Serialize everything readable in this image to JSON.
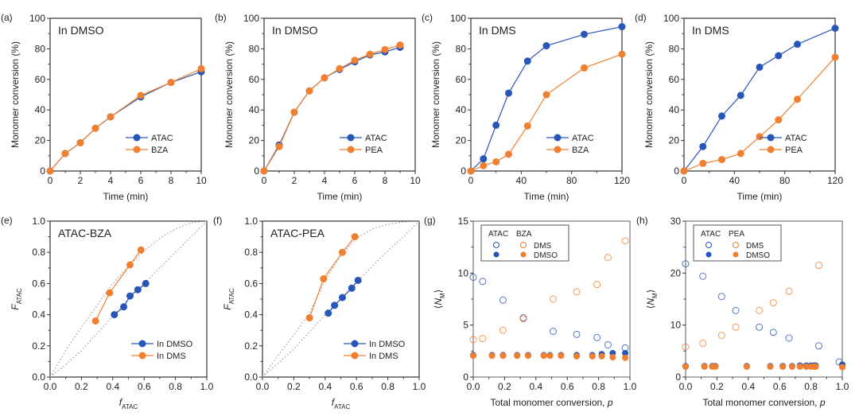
{
  "colors": {
    "blue": "#2855b8",
    "orange": "#f08030",
    "axis": "#333333",
    "dotted": "#888888"
  },
  "chart_data": [
    {
      "panel": "(a)",
      "type": "line",
      "annotation": "In DMSO",
      "xlabel": "Time (min)",
      "ylabel": "Monomer conversion (%)",
      "xlim": [
        0,
        10
      ],
      "ylim": [
        0,
        100
      ],
      "xticks": [
        0,
        2,
        4,
        6,
        8,
        10
      ],
      "yticks": [
        0,
        20,
        40,
        60,
        80,
        100
      ],
      "legend": "bottom-right",
      "series": [
        {
          "name": "ATAC",
          "color": "blue",
          "x": [
            0,
            1,
            2,
            3,
            4,
            6,
            8,
            10
          ],
          "y": [
            0,
            11.5,
            18.5,
            28,
            35.5,
            48.5,
            58,
            65
          ]
        },
        {
          "name": "BZA",
          "color": "orange",
          "x": [
            0,
            1,
            2,
            3,
            4,
            6,
            8,
            10
          ],
          "y": [
            0,
            11.5,
            18.5,
            28,
            35.5,
            49.5,
            58,
            67
          ]
        }
      ]
    },
    {
      "panel": "(b)",
      "type": "line",
      "annotation": "In DMSO",
      "xlabel": "Time (min)",
      "ylabel": "Monomer conversion (%)",
      "xlim": [
        0,
        10
      ],
      "ylim": [
        0,
        100
      ],
      "xticks": [
        0,
        2,
        4,
        6,
        8,
        10
      ],
      "yticks": [
        0,
        20,
        40,
        60,
        80,
        100
      ],
      "legend": "bottom-right",
      "series": [
        {
          "name": "ATAC",
          "color": "blue",
          "x": [
            0,
            1,
            2,
            3,
            4,
            5,
            6,
            7,
            8,
            9
          ],
          "y": [
            0,
            17,
            38.5,
            52.5,
            61,
            66.5,
            71.5,
            76,
            78,
            81
          ]
        },
        {
          "name": "PEA",
          "color": "orange",
          "x": [
            0,
            1,
            2,
            3,
            4,
            5,
            6,
            7,
            8,
            9
          ],
          "y": [
            0,
            16,
            38.5,
            52.5,
            61,
            67,
            72.5,
            76.5,
            79.5,
            82.5
          ]
        }
      ]
    },
    {
      "panel": "(c)",
      "type": "line",
      "annotation": "In DMS",
      "xlabel": "Time (min)",
      "ylabel": "Monomer conversion (%)",
      "xlim": [
        0,
        120
      ],
      "ylim": [
        0,
        100
      ],
      "xticks": [
        0,
        40,
        80,
        120
      ],
      "yticks": [
        0,
        20,
        40,
        60,
        80,
        100
      ],
      "legend": "bottom-right",
      "series": [
        {
          "name": "ATAC",
          "color": "blue",
          "x": [
            0,
            10,
            20,
            30,
            45,
            60,
            90,
            120
          ],
          "y": [
            0,
            8,
            30,
            51,
            72,
            82,
            89.5,
            94.5
          ]
        },
        {
          "name": "BZA",
          "color": "orange",
          "x": [
            0,
            10,
            20,
            30,
            45,
            60,
            90,
            120
          ],
          "y": [
            0,
            3.5,
            6,
            11,
            29.5,
            50,
            67.5,
            76.5
          ]
        }
      ]
    },
    {
      "panel": "(d)",
      "type": "line",
      "annotation": "In DMS",
      "xlabel": "Time (min)",
      "ylabel": "Monomer conversion (%)",
      "xlim": [
        0,
        120
      ],
      "ylim": [
        0,
        100
      ],
      "xticks": [
        0,
        40,
        80,
        120
      ],
      "yticks": [
        0,
        20,
        40,
        60,
        80,
        100
      ],
      "legend": "bottom-right",
      "series": [
        {
          "name": "ATAC",
          "color": "blue",
          "x": [
            0,
            15,
            30,
            45,
            60,
            75,
            90,
            120
          ],
          "y": [
            0,
            16,
            36,
            49.5,
            68,
            75.5,
            83,
            93.5
          ]
        },
        {
          "name": "PEA",
          "color": "orange",
          "x": [
            0,
            15,
            30,
            45,
            60,
            75,
            90,
            120
          ],
          "y": [
            0,
            5,
            7.5,
            11.5,
            22.5,
            33.5,
            47,
            74.5
          ]
        }
      ]
    },
    {
      "panel": "(e)",
      "type": "line",
      "annotation": "ATAC-BZA",
      "xlabel": "f",
      "xlabel_sub": "ATAC",
      "ylabel": "F",
      "ylabel_sub": "ATAC",
      "xlim": [
        0,
        1
      ],
      "ylim": [
        0,
        1
      ],
      "xticks": [
        0.0,
        0.2,
        0.4,
        0.6,
        0.8,
        1.0
      ],
      "yticks": [
        0.0,
        0.2,
        0.4,
        0.6,
        0.8,
        1.0
      ],
      "legend": "bottom-right",
      "dotted_curves": [
        {
          "x": [
            0,
            0.1,
            0.2,
            0.3,
            0.4,
            0.5,
            0.6,
            0.7,
            0.8,
            0.9,
            1.0
          ],
          "y": [
            0,
            0.17,
            0.32,
            0.46,
            0.6,
            0.71,
            0.81,
            0.89,
            0.95,
            0.99,
            1.0
          ]
        },
        {
          "x": [
            0,
            0.1,
            0.2,
            0.3,
            0.4,
            0.5,
            0.6,
            0.7,
            0.8,
            0.9,
            1.0
          ],
          "y": [
            0,
            0.08,
            0.17,
            0.28,
            0.39,
            0.5,
            0.6,
            0.7,
            0.8,
            0.9,
            1.0
          ]
        }
      ],
      "series": [
        {
          "name": "In DMSO",
          "color": "blue",
          "x": [
            0.41,
            0.47,
            0.51,
            0.56,
            0.61
          ],
          "y": [
            0.4,
            0.45,
            0.52,
            0.56,
            0.6
          ]
        },
        {
          "name": "In DMS",
          "color": "orange",
          "x": [
            0.29,
            0.38,
            0.51,
            0.58
          ],
          "y": [
            0.36,
            0.54,
            0.72,
            0.815
          ]
        }
      ]
    },
    {
      "panel": "(f)",
      "type": "line",
      "annotation": "ATAC-PEA",
      "xlabel": "f",
      "xlabel_sub": "ATAC",
      "ylabel": "F",
      "ylabel_sub": "ATAC",
      "xlim": [
        0,
        1
      ],
      "ylim": [
        0,
        1
      ],
      "xticks": [
        0.0,
        0.2,
        0.4,
        0.6,
        0.8,
        1.0
      ],
      "yticks": [
        0.0,
        0.2,
        0.4,
        0.6,
        0.8,
        1.0
      ],
      "legend": "bottom-right",
      "dotted_curves": [
        {
          "x": [
            0,
            0.1,
            0.2,
            0.3,
            0.4,
            0.5,
            0.6,
            0.7,
            0.8,
            0.9,
            1.0
          ],
          "y": [
            0,
            0.14,
            0.27,
            0.41,
            0.62,
            0.78,
            0.89,
            0.95,
            0.98,
            0.995,
            1.0
          ]
        },
        {
          "x": [
            0,
            0.1,
            0.2,
            0.3,
            0.4,
            0.5,
            0.6,
            0.7,
            0.8,
            0.9,
            1.0
          ],
          "y": [
            0,
            0.09,
            0.18,
            0.29,
            0.4,
            0.5,
            0.61,
            0.71,
            0.81,
            0.9,
            1.0
          ]
        }
      ],
      "series": [
        {
          "name": "In DMSO",
          "color": "blue",
          "x": [
            0.42,
            0.46,
            0.51,
            0.57,
            0.61
          ],
          "y": [
            0.41,
            0.46,
            0.51,
            0.57,
            0.62
          ]
        },
        {
          "name": "In DMS",
          "color": "orange",
          "x": [
            0.3,
            0.39,
            0.51,
            0.59
          ],
          "y": [
            0.38,
            0.63,
            0.8,
            0.9
          ]
        }
      ]
    },
    {
      "panel": "(g)",
      "type": "scatter",
      "xlabel": "Total monomer conversion, p",
      "ylabel": "⟨N",
      "ylabel_sub": "M",
      "xlim": [
        0,
        1
      ],
      "ylim": [
        0,
        15
      ],
      "xticks": [
        0.0,
        0.2,
        0.4,
        0.6,
        0.8,
        1.0
      ],
      "yticks": [
        0,
        5,
        10,
        15
      ],
      "legend": "top-left",
      "legend_headers": [
        "ATAC",
        "BZA"
      ],
      "legend_rows": [
        "DMS",
        "DMSO"
      ],
      "series": [
        {
          "name": "ATAC DMS",
          "color": "blue",
          "filled": false,
          "x": [
            0.0,
            0.06,
            0.19,
            0.32,
            0.51,
            0.66,
            0.79,
            0.86,
            0.97
          ],
          "y": [
            9.6,
            9.2,
            7.4,
            5.7,
            4.4,
            4.1,
            3.8,
            3.1,
            2.8
          ]
        },
        {
          "name": "BZA DMS",
          "color": "orange",
          "filled": false,
          "x": [
            0.0,
            0.06,
            0.19,
            0.32,
            0.51,
            0.66,
            0.79,
            0.86,
            0.97
          ],
          "y": [
            3.6,
            3.7,
            4.5,
            5.6,
            7.5,
            8.2,
            8.9,
            11.5,
            13.1
          ]
        },
        {
          "name": "ATAC DMSO",
          "color": "blue",
          "filled": true,
          "x": [
            0.0,
            0.12,
            0.19,
            0.28,
            0.35,
            0.45,
            0.49,
            0.56,
            0.66,
            0.76,
            0.82,
            0.89,
            0.97
          ],
          "y": [
            2.1,
            2.1,
            2.1,
            2.1,
            2.1,
            2.1,
            2.1,
            2.1,
            2.1,
            2.1,
            2.2,
            2.3,
            2.3
          ]
        },
        {
          "name": "BZA DMSO",
          "color": "orange",
          "filled": true,
          "x": [
            0.0,
            0.12,
            0.19,
            0.28,
            0.35,
            0.45,
            0.49,
            0.56,
            0.66,
            0.76,
            0.82,
            0.89,
            0.97
          ],
          "y": [
            2.05,
            2.05,
            2.05,
            2.05,
            2.05,
            2.05,
            2.05,
            2.05,
            2.0,
            2.0,
            2.0,
            1.9,
            1.85
          ]
        }
      ]
    },
    {
      "panel": "(h)",
      "type": "scatter",
      "xlabel": "Total monomer conversion, p",
      "ylabel": "⟨N",
      "ylabel_sub": "M",
      "xlim": [
        0,
        1
      ],
      "ylim": [
        0,
        30
      ],
      "xticks": [
        0.0,
        0.2,
        0.4,
        0.6,
        0.8,
        1.0
      ],
      "yticks": [
        0,
        10,
        20,
        30
      ],
      "legend": "top-left",
      "legend_headers": [
        "ATAC",
        "PEA"
      ],
      "legend_rows": [
        "DMS",
        "DMSO"
      ],
      "series": [
        {
          "name": "ATAC DMS",
          "color": "blue",
          "filled": false,
          "x": [
            0.0,
            0.11,
            0.23,
            0.32,
            0.47,
            0.56,
            0.66,
            0.85,
            0.98
          ],
          "y": [
            21.8,
            19.4,
            15.5,
            12.8,
            9.6,
            8.6,
            7.5,
            6.0,
            2.9
          ]
        },
        {
          "name": "PEA DMS",
          "color": "orange",
          "filled": false,
          "x": [
            0.0,
            0.11,
            0.23,
            0.32,
            0.47,
            0.56,
            0.66,
            0.85
          ],
          "y": [
            5.8,
            6.5,
            8.0,
            9.6,
            12.8,
            14.3,
            16.5,
            21.5
          ]
        },
        {
          "name": "ATAC DMSO",
          "color": "blue",
          "filled": true,
          "x": [
            0.0,
            0.12,
            0.17,
            0.19,
            0.39,
            0.54,
            0.62,
            0.68,
            0.73,
            0.77,
            0.8,
            0.82,
            0.83,
            1.0
          ],
          "y": [
            2.1,
            2.1,
            2.1,
            2.1,
            2.1,
            2.1,
            2.1,
            2.1,
            2.2,
            2.2,
            2.2,
            2.2,
            2.2,
            2.4
          ]
        },
        {
          "name": "PEA DMSO",
          "color": "orange",
          "filled": true,
          "x": [
            0.0,
            0.12,
            0.17,
            0.19,
            0.39,
            0.54,
            0.62,
            0.68,
            0.73,
            0.77,
            0.8,
            0.82,
            0.83,
            1.0
          ],
          "y": [
            2.0,
            2.0,
            2.0,
            2.0,
            2.0,
            2.0,
            2.0,
            2.0,
            2.0,
            2.0,
            2.0,
            2.0,
            2.0,
            1.9
          ]
        }
      ]
    }
  ]
}
